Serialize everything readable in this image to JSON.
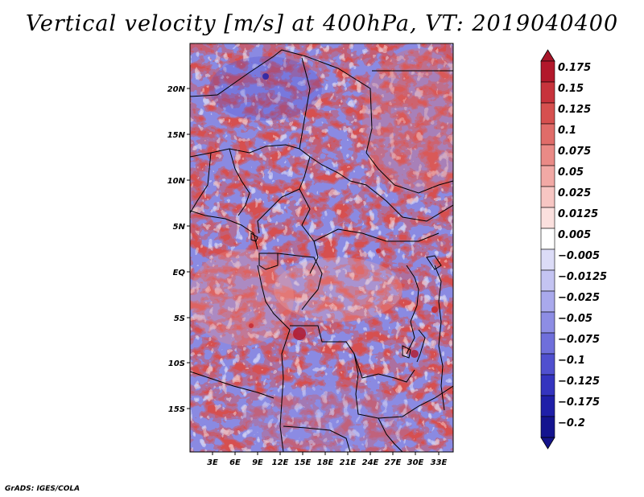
{
  "title": "Vertical velocity [m/s] at 400hPa, VT: 2019040400",
  "credit": "GrADS: IGES/COLA",
  "map": {
    "lat_labels": [
      "20N",
      "15N",
      "10N",
      "5N",
      "EQ",
      "5S",
      "10S",
      "15S"
    ],
    "lon_labels": [
      "3E",
      "6E",
      "9E",
      "12E",
      "15E",
      "18E",
      "21E",
      "24E",
      "27E",
      "30E",
      "33E"
    ]
  },
  "colorbar": {
    "levels": [
      "0.175",
      "0.15",
      "0.125",
      "0.1",
      "0.075",
      "0.05",
      "0.025",
      "0.0125",
      "0.005",
      "-0.005",
      "-0.0125",
      "-0.025",
      "-0.05",
      "-0.075",
      "-0.1",
      "-0.125",
      "-0.175",
      "-0.2"
    ],
    "colors": [
      "#b2182b",
      "#c7333c",
      "#d6504f",
      "#e06c69",
      "#ea8a86",
      "#f2a9a5",
      "#f7c6c3",
      "#fbe0de",
      "#ffffff",
      "#dcdcf7",
      "#c4c4f2",
      "#a9a9ec",
      "#8d8de4",
      "#6f6fdb",
      "#5050cf",
      "#3434bf",
      "#1f1fa8",
      "#14148f"
    ],
    "top_cap_color": "#a8162a",
    "bottom_cap_color": "#15148a"
  }
}
